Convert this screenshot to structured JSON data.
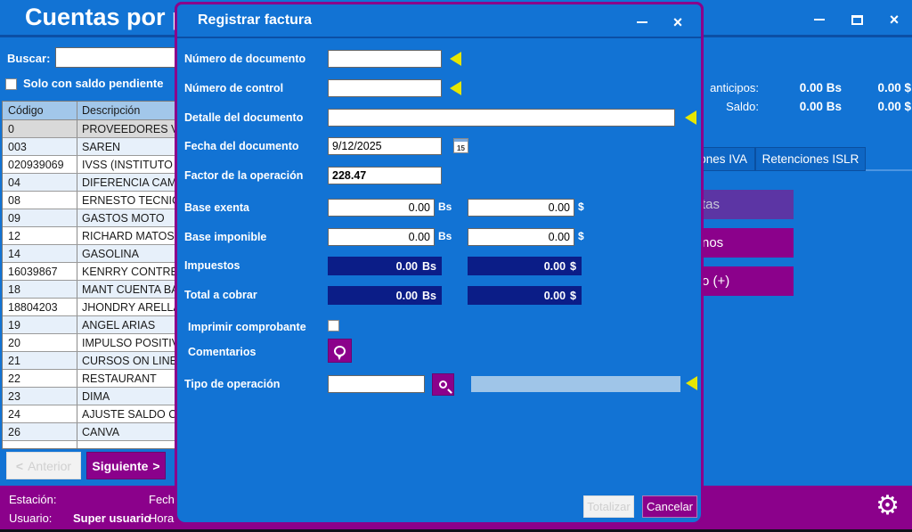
{
  "colors": {
    "window_blue": "#1273d4",
    "titlebar_divider": "#0b4fa5",
    "magenta_accent": "#8b018b",
    "navy_readonly_field": "#0b1d87",
    "table_header_blue": "#a2c7ea",
    "row_alt_blue": "#e7f0fa",
    "selected_row_gray": "#d9d9d9",
    "disabled_side_button_purple": "#5c35a4",
    "disabled_lookup_field_blue": "#9fc5e8",
    "marker_yellow": "#e6e600"
  },
  "main_window": {
    "title": "Cuentas por pa",
    "search_label": "Buscar:",
    "pending_checkbox_label": "Solo con saldo pendiente",
    "table": {
      "columns": [
        "Código",
        "Descripción"
      ],
      "rows": [
        {
          "code": "0",
          "desc": "PROVEEDORES VA",
          "selected": true
        },
        {
          "code": "003",
          "desc": "SAREN"
        },
        {
          "code": "020939069",
          "desc": "IVSS (INSTITUTO V"
        },
        {
          "code": "04",
          "desc": "DIFERENCIA CAMB"
        },
        {
          "code": "08",
          "desc": "ERNESTO TECNICO"
        },
        {
          "code": "09",
          "desc": "GASTOS MOTO"
        },
        {
          "code": "12",
          "desc": "RICHARD MATOS"
        },
        {
          "code": "14",
          "desc": "GASOLINA"
        },
        {
          "code": "16039867",
          "desc": "KENRRY CONTRER"
        },
        {
          "code": "18",
          "desc": "MANT CUENTA BA"
        },
        {
          "code": "18804203",
          "desc": "JHONDRY ARELLA"
        },
        {
          "code": "19",
          "desc": "ANGEL ARIAS"
        },
        {
          "code": "20",
          "desc": "IMPULSO POSITIV"
        },
        {
          "code": "21",
          "desc": "CURSOS ON LINE"
        },
        {
          "code": "22",
          "desc": "RESTAURANT"
        },
        {
          "code": "23",
          "desc": "DIMA"
        },
        {
          "code": "24",
          "desc": "AJUSTE SALDO CL"
        },
        {
          "code": "26",
          "desc": "CANVA"
        },
        {
          "code": "",
          "desc": ""
        }
      ]
    },
    "pagination": {
      "prev_chevron": "<",
      "prev_label": "Anterior",
      "next_label": "Siguiente",
      "next_chevron": ">"
    },
    "summary": {
      "anticipos_label": "anticipos:",
      "anticipos_bs": "0.00 Bs",
      "anticipos_usd": "0.00 $",
      "saldo_label": "Saldo:",
      "saldo_bs": "0.00 Bs",
      "saldo_usd": "0.00 $"
    },
    "tabs": [
      {
        "label": "ones IVA"
      },
      {
        "label": "Retenciones ISLR"
      }
    ],
    "side_buttons": [
      {
        "label": "tas"
      },
      {
        "label": "nos"
      },
      {
        "label": "o (+)"
      }
    ],
    "statusbar": {
      "station_label": "Estación:",
      "user_label": "Usuario:",
      "user_value": "Super usuario",
      "date_label": "Fech",
      "time_label": "Hora"
    }
  },
  "modal": {
    "title": "Registrar factura",
    "fields": {
      "numero_documento": {
        "label": "Número de documento",
        "value": ""
      },
      "numero_control": {
        "label": "Número de control",
        "value": ""
      },
      "detalle_documento": {
        "label": "Detalle del documento",
        "value": ""
      },
      "fecha_documento": {
        "label": "Fecha del documento",
        "value": "9/12/2025",
        "calendar_icon_text": "15"
      },
      "factor_operacion": {
        "label": "Factor de la operación",
        "value": "228.47"
      },
      "base_exenta": {
        "label": "Base exenta",
        "bs": "0.00",
        "usd": "0.00"
      },
      "base_imponible": {
        "label": "Base imponible",
        "bs": "0.00",
        "usd": "0.00"
      },
      "impuestos": {
        "label": "Impuestos",
        "bs": "0.00",
        "usd": "0.00"
      },
      "total_cobrar": {
        "label": "Total a cobrar",
        "bs": "0.00",
        "usd": "0.00"
      },
      "imprimir_comprobante": {
        "label": "Imprimir comprobante"
      },
      "comentarios": {
        "label": "Comentarios"
      },
      "tipo_operacion": {
        "label": "Tipo de operación",
        "value": "",
        "display": ""
      }
    },
    "units": {
      "bs": "Bs",
      "usd": "$"
    },
    "buttons": {
      "totalizar": "Totalizar",
      "cancelar": "Cancelar"
    }
  }
}
